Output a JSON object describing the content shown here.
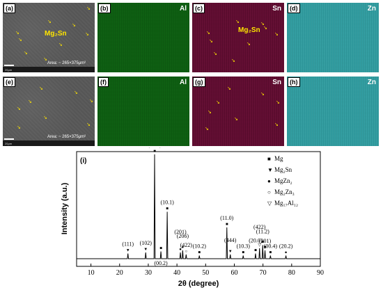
{
  "panels": {
    "a": {
      "tag": "(a)",
      "label": "Mg₂Sn",
      "area": "Area: ~ 265×375μm²",
      "scale": "20μm"
    },
    "b": {
      "tag": "(b)",
      "element": "Al"
    },
    "c": {
      "tag": "(c)",
      "element": "Sn",
      "label": "Mg₂Sn"
    },
    "d": {
      "tag": "(d)",
      "element": "Zn"
    },
    "e": {
      "tag": "(e)",
      "area": "Area: ~ 265×375μm²",
      "scale": "20μm"
    },
    "f": {
      "tag": "(f)",
      "element": "Al"
    },
    "g": {
      "tag": "(g)",
      "element": "Sn"
    },
    "h": {
      "tag": "(h)",
      "element": "Zn"
    }
  },
  "colors": {
    "sem": "#585858",
    "al": "#137a18",
    "sn": "#8a1445",
    "zn": "#44c1c4",
    "arrows": "#ffe500"
  },
  "chart_data": {
    "type": "line",
    "panel_tag": "(i)",
    "xlabel": "2θ (degree)",
    "ylabel": "Intensity (a.u.)",
    "xlim": [
      5,
      90
    ],
    "xticks": [
      10,
      20,
      30,
      40,
      50,
      60,
      70,
      80,
      90
    ],
    "grid": false,
    "legend_position": "top-right",
    "legend": [
      {
        "marker": "■",
        "text": "Mg"
      },
      {
        "marker": "▼",
        "text": "Mg₂Sn"
      },
      {
        "marker": "●",
        "text": "MgZn₂"
      },
      {
        "marker": "○",
        "text": "Mg₂Zn₃"
      },
      {
        "marker": "▽",
        "text": "Mg₁₇Al₁₂"
      }
    ],
    "peaks": [
      {
        "x": 22.9,
        "h": 0.05,
        "marker": "▼",
        "label": "(111)"
      },
      {
        "x": 29.1,
        "h": 0.06,
        "marker": "▼",
        "label": "(102)"
      },
      {
        "x": 32.2,
        "h": 1.0,
        "marker": "■",
        "label": "(10.0)"
      },
      {
        "x": 34.4,
        "h": 0.07,
        "marker": "■",
        "label": "(00.2)"
      },
      {
        "x": 36.6,
        "h": 0.45,
        "marker": "■",
        "label": "(10.1)"
      },
      {
        "x": 41.2,
        "h": 0.06,
        "marker": "●",
        "label": "(201)"
      },
      {
        "x": 42.0,
        "h": 0.08,
        "marker": "●",
        "label": "(206)"
      },
      {
        "x": 43.2,
        "h": 0.04,
        "marker": "○",
        "label": "(422)"
      },
      {
        "x": 47.8,
        "h": 0.03,
        "marker": "■",
        "label": "(10.2)"
      },
      {
        "x": 57.4,
        "h": 0.3,
        "marker": "■",
        "label": "(11.0)"
      },
      {
        "x": 58.6,
        "h": 0.04,
        "marker": "▼",
        "label": "(444)"
      },
      {
        "x": 63.1,
        "h": 0.03,
        "marker": "■",
        "label": "(10.3)"
      },
      {
        "x": 67.4,
        "h": 0.05,
        "marker": "■",
        "label": "(20.0)"
      },
      {
        "x": 68.8,
        "h": 0.1,
        "marker": "▽",
        "label": "(422)"
      },
      {
        "x": 69.9,
        "h": 0.13,
        "marker": "■",
        "label": "(11.2)"
      },
      {
        "x": 70.7,
        "h": 0.08,
        "marker": "■",
        "label": "(201)"
      },
      {
        "x": 72.6,
        "h": 0.03,
        "marker": "■",
        "label": "(00.4)"
      },
      {
        "x": 78.0,
        "h": 0.03,
        "marker": "●",
        "label": "(20.2)"
      }
    ]
  }
}
